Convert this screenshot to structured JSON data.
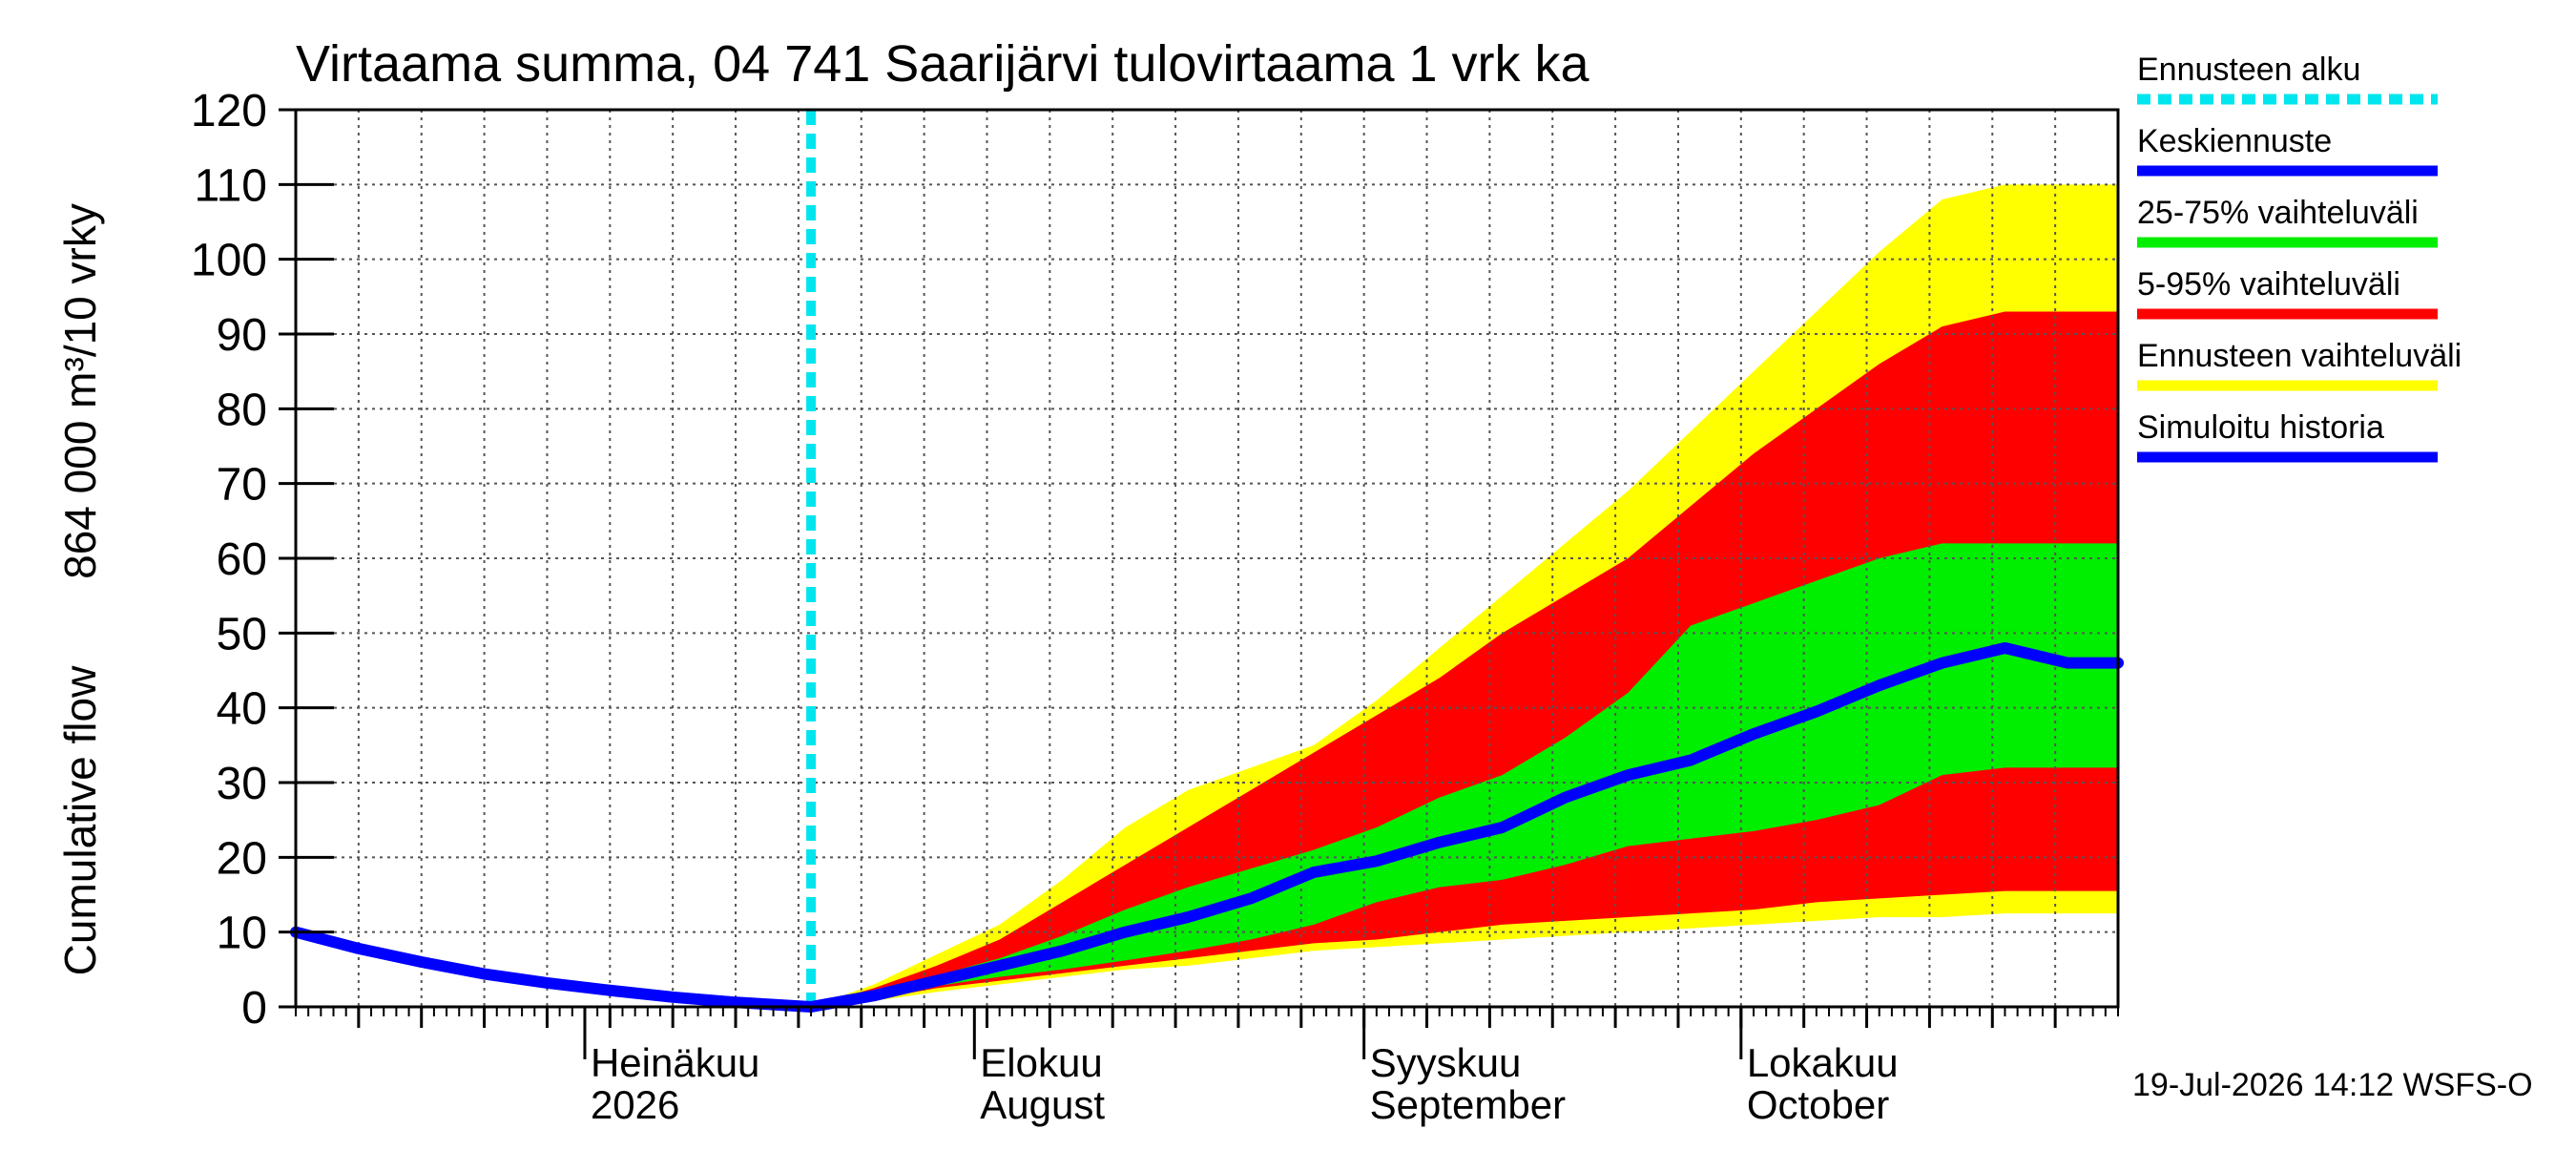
{
  "chart_data": {
    "type": "area",
    "title": "Virtaama summa, 04 741 Saarijärvi tulovirtaama 1 vrk ka",
    "ylabel_top": "864 000 m³/10 vrky",
    "ylabel_bottom": "Cumulative flow",
    "ylim": [
      0,
      120
    ],
    "yticks": [
      0,
      10,
      20,
      30,
      40,
      50,
      60,
      70,
      80,
      90,
      100,
      110,
      120
    ],
    "xlim": [
      "2026-06-08",
      "2026-10-31"
    ],
    "grid": true,
    "legend_position": "right",
    "month_labels": [
      {
        "date": "2026-07-01",
        "line1": "Heinäkuu",
        "line2": "2026"
      },
      {
        "date": "2026-08-01",
        "line1": "Elokuu",
        "line2": "August"
      },
      {
        "date": "2026-09-01",
        "line1": "Syyskuu",
        "line2": "September"
      },
      {
        "date": "2026-10-01",
        "line1": "Lokakuu",
        "line2": "October"
      }
    ],
    "forecast_start": "2026-07-19",
    "footer": "19-Jul-2026 14:12 WSFS-O",
    "series": [
      {
        "name": "Ennusteen alku",
        "role": "forecast_start",
        "color": "#00e5ee"
      },
      {
        "name": "Keskiennuste",
        "role": "median",
        "color": "#0000ff",
        "x": [
          "2026-07-19",
          "2026-07-24",
          "2026-07-29",
          "2026-08-03",
          "2026-08-08",
          "2026-08-13",
          "2026-08-18",
          "2026-08-23",
          "2026-08-28",
          "2026-09-02",
          "2026-09-07",
          "2026-09-12",
          "2026-09-17",
          "2026-09-22",
          "2026-09-27",
          "2026-10-02",
          "2026-10-07",
          "2026-10-12",
          "2026-10-17",
          "2026-10-22",
          "2026-10-27",
          "2026-10-31"
        ],
        "y": [
          0,
          1.5,
          3.5,
          5.5,
          7.5,
          10,
          12,
          14.5,
          18,
          19.5,
          22,
          24,
          28,
          31,
          33,
          36.5,
          39.5,
          43,
          46,
          48,
          46,
          46
        ]
      },
      {
        "name": "25-75% vaihteluväli",
        "role": "band_25_75",
        "color": "#00ee00",
        "x": [
          "2026-07-19",
          "2026-07-24",
          "2026-07-29",
          "2026-08-03",
          "2026-08-08",
          "2026-08-13",
          "2026-08-18",
          "2026-08-23",
          "2026-08-28",
          "2026-09-02",
          "2026-09-07",
          "2026-09-12",
          "2026-09-17",
          "2026-09-22",
          "2026-09-27",
          "2026-10-02",
          "2026-10-07",
          "2026-10-12",
          "2026-10-17",
          "2026-10-22",
          "2026-10-27",
          "2026-10-31"
        ],
        "low": [
          0,
          1.2,
          2.8,
          4,
          5,
          6.2,
          7.5,
          9,
          11,
          14,
          16,
          17,
          19,
          21.5,
          22.5,
          23.5,
          25,
          27,
          31,
          32,
          32,
          32
        ],
        "high": [
          0,
          1.8,
          4.2,
          6.5,
          9.5,
          13,
          16,
          18.5,
          21,
          24,
          28,
          31,
          36,
          42,
          51,
          54,
          57,
          60,
          62,
          62,
          62,
          62
        ]
      },
      {
        "name": "5-95% vaihteluväli",
        "role": "band_5_95",
        "color": "#ff0000",
        "x": [
          "2026-07-19",
          "2026-07-24",
          "2026-07-29",
          "2026-08-03",
          "2026-08-08",
          "2026-08-13",
          "2026-08-18",
          "2026-08-23",
          "2026-08-28",
          "2026-09-02",
          "2026-09-07",
          "2026-09-12",
          "2026-09-17",
          "2026-09-22",
          "2026-09-27",
          "2026-10-02",
          "2026-10-07",
          "2026-10-12",
          "2026-10-17",
          "2026-10-22",
          "2026-10-27",
          "2026-10-31"
        ],
        "low": [
          0,
          1,
          2.5,
          3.5,
          4.5,
          5.5,
          6.5,
          7.5,
          8.5,
          9,
          10,
          11,
          11.5,
          12,
          12.5,
          13,
          14,
          14.5,
          15,
          15.5,
          15.5,
          15.5
        ],
        "high": [
          0,
          2.5,
          5.5,
          9,
          14,
          19,
          24,
          29,
          34,
          39,
          44,
          50,
          55,
          60,
          67,
          74,
          80,
          86,
          91,
          93,
          93,
          93
        ]
      },
      {
        "name": "Ennusteen vaihteluväli",
        "role": "band_min_max",
        "color": "#ffff00",
        "x": [
          "2026-07-19",
          "2026-07-24",
          "2026-07-29",
          "2026-08-03",
          "2026-08-08",
          "2026-08-13",
          "2026-08-18",
          "2026-08-23",
          "2026-08-28",
          "2026-09-02",
          "2026-09-07",
          "2026-09-12",
          "2026-09-17",
          "2026-09-22",
          "2026-09-27",
          "2026-10-02",
          "2026-10-07",
          "2026-10-12",
          "2026-10-17",
          "2026-10-22",
          "2026-10-27",
          "2026-10-31"
        ],
        "low": [
          0,
          0.8,
          2,
          3,
          4,
          5,
          5.5,
          6.5,
          7.5,
          8,
          8.5,
          9,
          9.5,
          10,
          10.5,
          11,
          11.5,
          12,
          12,
          12.5,
          12.5,
          12.5
        ],
        "high": [
          0,
          3,
          7,
          11,
          17,
          24,
          29,
          32,
          35,
          41,
          48,
          55,
          62,
          69,
          77,
          85,
          93,
          101,
          108,
          110,
          110,
          110
        ]
      },
      {
        "name": "Simuloitu historia",
        "role": "history",
        "color": "#0000ff",
        "x": [
          "2026-06-08",
          "2026-06-13",
          "2026-06-18",
          "2026-06-23",
          "2026-06-28",
          "2026-07-03",
          "2026-07-08",
          "2026-07-13",
          "2026-07-19"
        ],
        "y": [
          10,
          7.8,
          6,
          4.4,
          3.2,
          2.2,
          1.3,
          0.6,
          0
        ]
      }
    ]
  }
}
